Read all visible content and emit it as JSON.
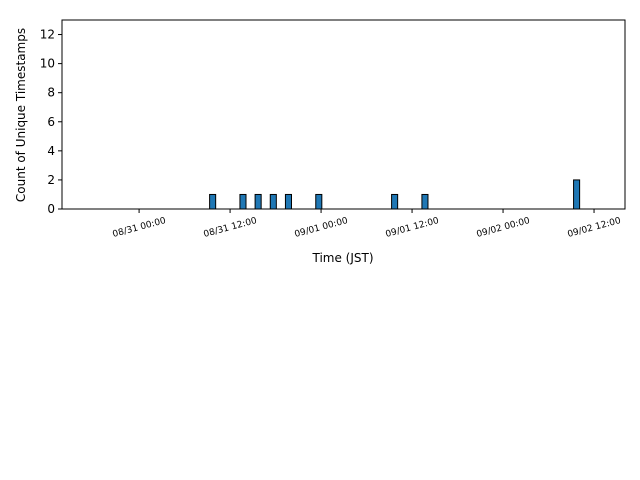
{
  "chart_data": {
    "type": "histogram",
    "xlabel": "Time (JST)",
    "ylabel": "Count of Unique Timestamps",
    "bins": [
      "08/30 15:00",
      "08/30 16:00",
      "08/30 17:00",
      "08/30 18:00",
      "08/30 19:00",
      "08/30 20:00",
      "08/30 21:00",
      "08/30 22:00",
      "08/30 23:00",
      "08/31 00:00",
      "08/31 01:00",
      "08/31 02:00",
      "08/31 03:00",
      "08/31 04:00",
      "08/31 05:00",
      "08/31 06:00",
      "08/31 07:00",
      "08/31 08:00",
      "08/31 09:00",
      "08/31 10:00",
      "08/31 11:00",
      "08/31 12:00",
      "08/31 13:00",
      "08/31 14:00",
      "08/31 15:00",
      "08/31 16:00",
      "08/31 17:00",
      "08/31 18:00",
      "08/31 19:00",
      "08/31 20:00",
      "08/31 21:00",
      "08/31 22:00",
      "08/31 23:00",
      "09/01 00:00",
      "09/01 01:00",
      "09/01 02:00",
      "09/01 03:00",
      "09/01 04:00",
      "09/01 05:00",
      "09/01 06:00",
      "09/01 07:00",
      "09/01 08:00",
      "09/01 09:00",
      "09/01 10:00",
      "09/01 11:00",
      "09/01 12:00",
      "09/01 13:00",
      "09/01 14:00",
      "09/01 15:00",
      "09/01 16:00",
      "09/01 17:00",
      "09/01 18:00",
      "09/01 19:00",
      "09/01 20:00",
      "09/01 21:00",
      "09/01 22:00",
      "09/01 23:00",
      "09/02 00:00",
      "09/02 01:00",
      "09/02 02:00",
      "09/02 03:00",
      "09/02 04:00",
      "09/02 05:00",
      "09/02 06:00",
      "09/02 07:00",
      "09/02 08:00",
      "09/02 09:00",
      "09/02 10:00",
      "09/02 11:00",
      "09/02 12:00",
      "09/02 13:00",
      "09/02 14:00"
    ],
    "values": [
      0,
      0,
      0,
      0,
      0,
      0,
      0,
      0,
      0,
      0,
      0,
      0,
      0,
      0,
      0,
      0,
      0,
      0,
      1,
      0,
      0,
      0,
      1,
      0,
      1,
      0,
      1,
      0,
      1,
      0,
      0,
      0,
      1,
      0,
      0,
      0,
      0,
      0,
      0,
      0,
      0,
      0,
      1,
      0,
      0,
      0,
      1,
      0,
      0,
      0,
      0,
      0,
      0,
      0,
      0,
      0,
      0,
      0,
      0,
      0,
      0,
      0,
      0,
      0,
      0,
      0,
      2,
      0,
      0,
      0,
      0
    ],
    "color": "#1f77b4",
    "edgecolor": "#000000",
    "xlim": [
      "08/30 13:50",
      "09/02 16:05"
    ],
    "ylim": [
      0,
      13
    ],
    "xticks": [
      "08/31 00:00",
      "08/31 12:00",
      "09/01 00:00",
      "09/01 12:00",
      "09/02 00:00",
      "09/02 12:00"
    ],
    "yticks": [
      0,
      2,
      4,
      6,
      8,
      10,
      12
    ],
    "grid": false
  }
}
